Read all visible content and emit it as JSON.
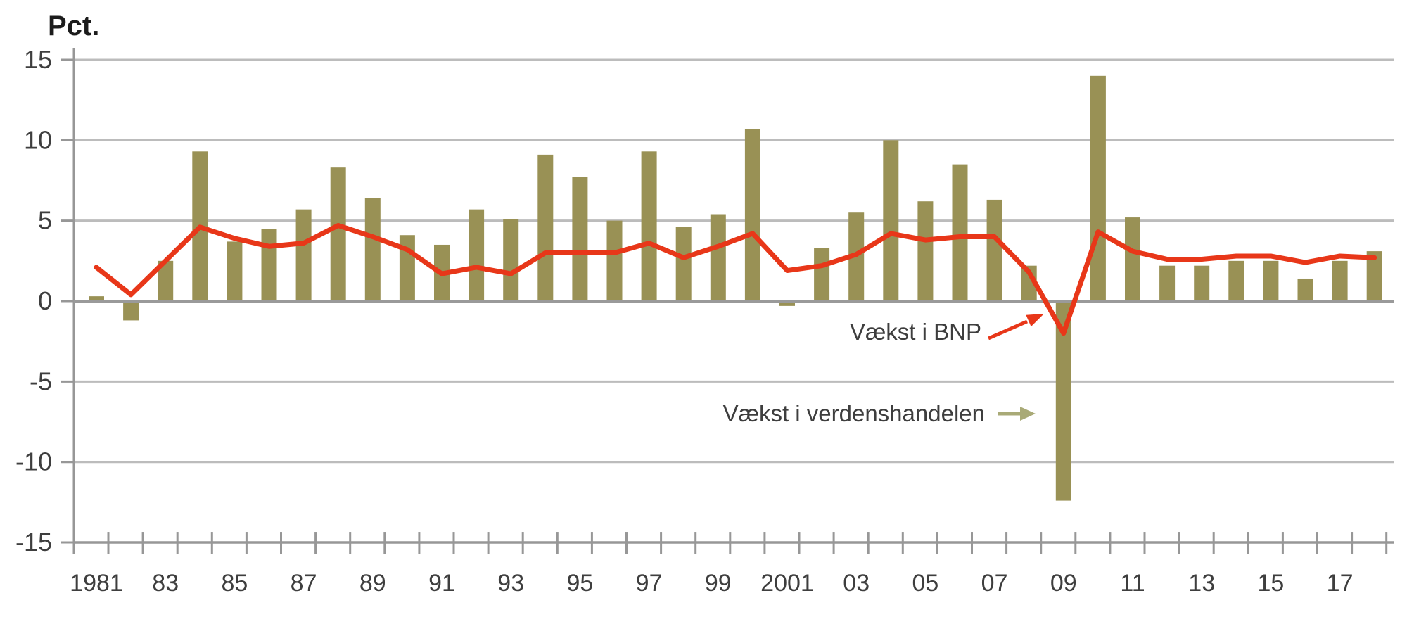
{
  "chart_data": {
    "type": "bar+line",
    "title": "",
    "ylabel": "Pct.",
    "ylim": [
      -15,
      15
    ],
    "yticks": [
      15,
      10,
      5,
      0,
      -5,
      -10,
      -15
    ],
    "grid": true,
    "x": [
      1981,
      1982,
      1983,
      1984,
      1985,
      1986,
      1987,
      1988,
      1989,
      1990,
      1991,
      1992,
      1993,
      1994,
      1995,
      1996,
      1997,
      1998,
      1999,
      2000,
      2001,
      2002,
      2003,
      2004,
      2005,
      2006,
      2007,
      2008,
      2009,
      2010,
      2011,
      2012,
      2013,
      2014,
      2015,
      2016,
      2017,
      2018
    ],
    "xtick_labels": [
      "1981",
      "83",
      "85",
      "87",
      "89",
      "91",
      "93",
      "95",
      "97",
      "99",
      "2001",
      "03",
      "05",
      "07",
      "09",
      "11",
      "13",
      "15",
      "17"
    ],
    "series": [
      {
        "name": "Vækst i verdenshandelen",
        "type": "bar",
        "color": "#999155",
        "values": [
          0.3,
          -1.2,
          2.5,
          9.3,
          3.7,
          4.5,
          5.7,
          8.3,
          6.4,
          4.1,
          3.5,
          5.7,
          5.1,
          9.1,
          7.7,
          5.0,
          9.3,
          4.6,
          5.4,
          10.7,
          -0.3,
          3.3,
          5.5,
          10.0,
          6.2,
          8.5,
          6.3,
          2.2,
          -12.4,
          14.0,
          5.2,
          2.2,
          2.2,
          2.5,
          2.5,
          1.4,
          2.5,
          3.1
        ]
      },
      {
        "name": "Vækst i BNP",
        "type": "line",
        "color": "#e83719",
        "values": [
          2.1,
          0.4,
          2.5,
          4.6,
          3.9,
          3.4,
          3.6,
          4.7,
          4.0,
          3.2,
          1.7,
          2.1,
          1.7,
          3.0,
          3.0,
          3.0,
          3.6,
          2.7,
          3.4,
          4.2,
          1.9,
          2.2,
          2.9,
          4.2,
          3.8,
          4.0,
          4.0,
          1.8,
          -2.0,
          4.3,
          3.1,
          2.6,
          2.6,
          2.8,
          2.8,
          2.4,
          2.8,
          2.7
        ]
      }
    ],
    "legend_position": "in-plot annotations with arrows"
  },
  "colors": {
    "bar": "#999155",
    "line": "#e83719",
    "grid_light": "#bcbcbc",
    "axis": "#979797",
    "zero_line": "#9a9a9a",
    "arrow_trade": "#a9aa77",
    "text": "#3e3e3e"
  }
}
